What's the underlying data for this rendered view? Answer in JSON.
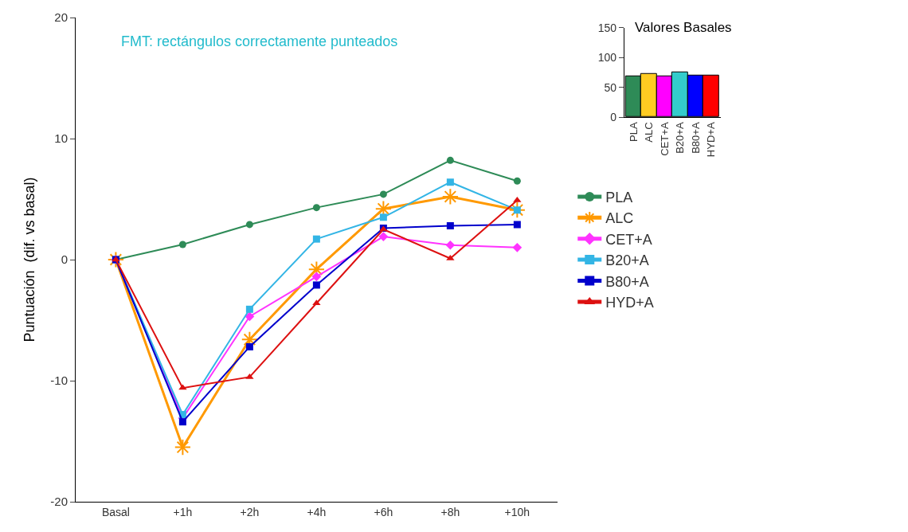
{
  "chart_data": [
    {
      "type": "line",
      "ylabel": "Puntuación  (dif. vs basal)",
      "categories": [
        "Basal",
        "+1h",
        "+2h",
        "+4h",
        "+6h",
        "+8h",
        "+10h"
      ],
      "series": [
        {
          "name": "PLA",
          "color": "#2e8b57",
          "marker": "circle",
          "values": [
            0,
            1.25,
            2.9,
            4.3,
            5.4,
            8.2,
            6.5
          ]
        },
        {
          "name": "ALC",
          "color": "#ff9900",
          "marker": "cross",
          "values": [
            0,
            -15.5,
            -6.6,
            -0.8,
            4.2,
            5.2,
            4.1
          ]
        },
        {
          "name": "CET+A",
          "color": "#ff33ff",
          "marker": "diamond",
          "values": [
            0,
            -13.1,
            -4.7,
            -1.4,
            1.9,
            1.2,
            1.0
          ]
        },
        {
          "name": "B20+A",
          "color": "#33b5e5",
          "marker": "square",
          "values": [
            0,
            -12.8,
            -4.1,
            1.7,
            3.5,
            6.4,
            4.1
          ]
        },
        {
          "name": "B80+A",
          "color": "#0000cc",
          "marker": "square",
          "values": [
            0,
            -13.4,
            -7.2,
            -2.1,
            2.6,
            2.8,
            2.9
          ]
        },
        {
          "name": "HYD+A",
          "color": "#dd1111",
          "marker": "triangle",
          "values": [
            0,
            -10.6,
            -9.7,
            -3.6,
            2.5,
            0.1,
            4.9
          ]
        }
      ],
      "ylim": [
        -20,
        20
      ],
      "yticks": [
        -20,
        -10,
        0,
        10,
        20
      ],
      "legend": "right",
      "annotations": [
        "FMT: rectángulos correctamente punteados"
      ]
    },
    {
      "type": "bar",
      "title": "Valores Basales",
      "categories": [
        "PLA",
        "ALC",
        "CET+A",
        "B20+A",
        "B80+A",
        "HYD+A"
      ],
      "values": [
        68,
        73,
        68,
        75,
        70,
        70
      ],
      "colors": [
        "#2e8b57",
        "#ffcc22",
        "#ff00ff",
        "#33cccc",
        "#0000ff",
        "#ff0000"
      ],
      "ylim": [
        0,
        150
      ],
      "yticks": [
        0,
        50,
        100,
        150
      ]
    }
  ]
}
